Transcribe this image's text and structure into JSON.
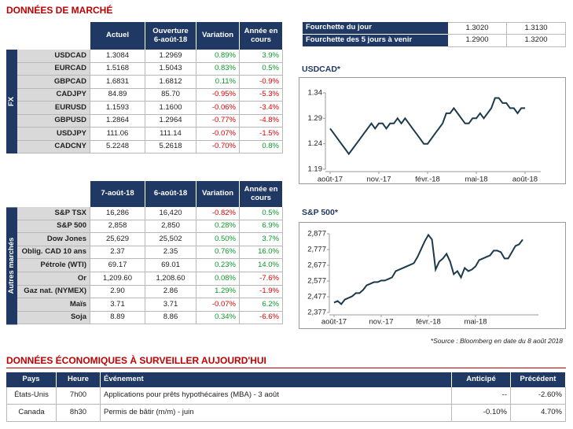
{
  "header": {
    "title": "DONNÉES DE MARCHÉ"
  },
  "fx": {
    "side_label": "FX",
    "headers": [
      "Actuel",
      "Ouverture 6-août-18",
      "Variation",
      "Année en cours"
    ],
    "rows": [
      [
        "USDCAD",
        "1.3084",
        "1.2969",
        "0.89%",
        "3.9%"
      ],
      [
        "EURCAD",
        "1.5168",
        "1.5043",
        "0.83%",
        "0.5%"
      ],
      [
        "GBPCAD",
        "1.6831",
        "1.6812",
        "0.11%",
        "-0.9%"
      ],
      [
        "CADJPY",
        "84.89",
        "85.70",
        "-0.95%",
        "-5.3%"
      ],
      [
        "EURUSD",
        "1.1593",
        "1.1600",
        "-0.06%",
        "-3.4%"
      ],
      [
        "GBPUSD",
        "1.2864",
        "1.2964",
        "-0.77%",
        "-4.8%"
      ],
      [
        "USDJPY",
        "111.06",
        "111.14",
        "-0.07%",
        "-1.5%"
      ],
      [
        "CADCNY",
        "5.2248",
        "5.2618",
        "-0.70%",
        "0.8%"
      ]
    ]
  },
  "markets": {
    "side_label": "Autres marchés",
    "headers": [
      "7-août-18",
      "6-août-18",
      "Variation",
      "Année en cours"
    ],
    "rows": [
      [
        "S&P TSX",
        "16,286",
        "16,420",
        "-0.82%",
        "0.5%"
      ],
      [
        "S&P 500",
        "2,858",
        "2,850",
        "0.28%",
        "6.9%"
      ],
      [
        "Dow Jones",
        "25,629",
        "25,502",
        "0.50%",
        "3.7%"
      ],
      [
        "Oblig. CAD 10 ans",
        "2.37",
        "2.35",
        "0.76%",
        "16.0%"
      ],
      [
        "Pétrole (WTI)",
        "69.17",
        "69.01",
        "0.23%",
        "14.0%"
      ],
      [
        "Or",
        "1,209.60",
        "1,208.60",
        "0.08%",
        "-7.6%"
      ],
      [
        "Gaz nat. (NYMEX)",
        "2.90",
        "2.86",
        "1.29%",
        "-1.9%"
      ],
      [
        "Maïs",
        "3.71",
        "3.71",
        "-0.07%",
        "6.2%"
      ],
      [
        "Soja",
        "8.89",
        "8.86",
        "0.34%",
        "-6.6%"
      ]
    ]
  },
  "ranges": {
    "rows": [
      [
        "Fourchette du jour",
        "1.3020",
        "1.3130"
      ],
      [
        "Fourchette des 5 jours à venir",
        "1.2900",
        "1.3200"
      ]
    ]
  },
  "charts": [
    {
      "type": "line",
      "title": "USDCAD*",
      "color": "#1b3a4b",
      "ylim": [
        1.19,
        1.34
      ],
      "yticks": [
        1.19,
        1.24,
        1.29,
        1.34
      ],
      "xticks": [
        {
          "value": 0,
          "label": "août-17"
        },
        {
          "value": 13,
          "label": "nov.-17"
        },
        {
          "value": 26,
          "label": "févr.-18"
        },
        {
          "value": 39,
          "label": "mai-18"
        },
        {
          "value": 52,
          "label": "août-18"
        }
      ],
      "values": [
        1.27,
        1.26,
        1.25,
        1.24,
        1.23,
        1.22,
        1.23,
        1.24,
        1.25,
        1.26,
        1.27,
        1.28,
        1.27,
        1.28,
        1.28,
        1.27,
        1.28,
        1.28,
        1.29,
        1.28,
        1.29,
        1.28,
        1.27,
        1.26,
        1.25,
        1.24,
        1.24,
        1.25,
        1.26,
        1.27,
        1.28,
        1.3,
        1.3,
        1.31,
        1.3,
        1.29,
        1.28,
        1.28,
        1.29,
        1.29,
        1.3,
        1.29,
        1.3,
        1.31,
        1.33,
        1.33,
        1.32,
        1.32,
        1.31,
        1.31,
        1.3,
        1.31,
        1.31
      ]
    },
    {
      "type": "line",
      "title": "S&P 500*",
      "color": "#1b3a4b",
      "ylim": [
        2377,
        2877
      ],
      "yticks": [
        {
          "value": 2377,
          "label": "2,377"
        },
        {
          "value": 2477,
          "label": "2,477"
        },
        {
          "value": 2577,
          "label": "2,577"
        },
        {
          "value": 2677,
          "label": "2,677"
        },
        {
          "value": 2777,
          "label": "2,777"
        },
        {
          "value": 2877,
          "label": "2,877"
        }
      ],
      "xticks": [
        {
          "value": 0,
          "label": "août-17"
        },
        {
          "value": 13,
          "label": "nov.-17"
        },
        {
          "value": 26,
          "label": "févr.-18"
        },
        {
          "value": 39,
          "label": "mai-18"
        }
      ],
      "values": [
        2440,
        2450,
        2430,
        2460,
        2470,
        2480,
        2500,
        2500,
        2520,
        2550,
        2560,
        2570,
        2570,
        2580,
        2580,
        2590,
        2600,
        2640,
        2650,
        2660,
        2670,
        2680,
        2690,
        2730,
        2780,
        2830,
        2870,
        2840,
        2650,
        2700,
        2720,
        2750,
        2700,
        2620,
        2640,
        2600,
        2660,
        2640,
        2650,
        2670,
        2710,
        2720,
        2730,
        2740,
        2770,
        2770,
        2760,
        2720,
        2720,
        2760,
        2800,
        2810,
        2840
      ]
    }
  ],
  "source": "*Source : Bloomberg en date du  8 août 2018",
  "events": {
    "title": "DONNÉES ÉCONOMIQUES À SURVEILLER AUJOURD'HUI",
    "headers": [
      "Pays",
      "Heure",
      "Événement",
      "Anticipé",
      "Précédent"
    ],
    "rows": [
      [
        "États-Unis",
        "7h00",
        "Applications pour prêts hypothécaires (MBA) - 3 août",
        "--",
        "-2.60%"
      ],
      [
        "Canada",
        "8h30",
        "Permis de bâtir (m/m) - juin",
        "-0.10%",
        "4.70%"
      ]
    ]
  }
}
